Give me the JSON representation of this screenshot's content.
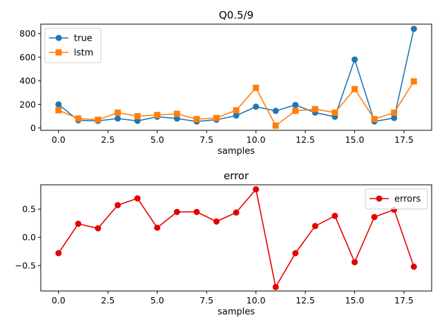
{
  "chart_data": [
    {
      "type": "line",
      "title": "Q0.5/9",
      "xlabel": "samples",
      "ylabel": "",
      "xlim": [
        -0.9,
        18.9
      ],
      "ylim": [
        -20,
        880
      ],
      "xticks": [
        0,
        2.5,
        5,
        7.5,
        10,
        12.5,
        15,
        17.5
      ],
      "xtick_labels": [
        "0.0",
        "2.5",
        "5.0",
        "7.5",
        "10.0",
        "12.5",
        "15.0",
        "17.5"
      ],
      "yticks": [
        0,
        200,
        400,
        600,
        800
      ],
      "ytick_labels": [
        "0",
        "200",
        "400",
        "600",
        "800"
      ],
      "grid": false,
      "legend": "upper-left",
      "x": [
        0,
        1,
        2,
        3,
        4,
        5,
        6,
        7,
        8,
        9,
        10,
        11,
        12,
        13,
        14,
        15,
        16,
        17,
        18
      ],
      "series": [
        {
          "name": "true",
          "color": "#1f77b4",
          "marker": "circle",
          "values": [
            200,
            65,
            60,
            80,
            60,
            95,
            80,
            55,
            70,
            105,
            180,
            145,
            195,
            130,
            95,
            580,
            55,
            85,
            840
          ]
        },
        {
          "name": "lstm",
          "color": "#ff7f0e",
          "marker": "square",
          "values": [
            150,
            80,
            70,
            130,
            100,
            110,
            120,
            75,
            85,
            150,
            340,
            20,
            145,
            160,
            130,
            330,
            75,
            130,
            395
          ]
        }
      ]
    },
    {
      "type": "line",
      "title": "error",
      "xlabel": "samples",
      "ylabel": "",
      "xlim": [
        -0.9,
        18.9
      ],
      "ylim": [
        -0.95,
        0.93
      ],
      "xticks": [
        0,
        2.5,
        5,
        7.5,
        10,
        12.5,
        15,
        17.5
      ],
      "xtick_labels": [
        "0.0",
        "2.5",
        "5.0",
        "7.5",
        "10.0",
        "12.5",
        "15.0",
        "17.5"
      ],
      "yticks": [
        -0.5,
        0,
        0.5
      ],
      "ytick_labels": [
        "−0.5",
        "0.0",
        "0.5"
      ],
      "grid": false,
      "legend": "upper-right",
      "x": [
        0,
        1,
        2,
        3,
        4,
        5,
        6,
        7,
        8,
        9,
        10,
        11,
        12,
        13,
        14,
        15,
        16,
        17,
        18
      ],
      "series": [
        {
          "name": "errors",
          "color": "#e50000",
          "marker": "circle",
          "values": [
            -0.28,
            0.24,
            0.16,
            0.57,
            0.69,
            0.17,
            0.45,
            0.45,
            0.28,
            0.44,
            0.85,
            -0.88,
            -0.28,
            0.2,
            0.38,
            -0.44,
            0.36,
            0.49,
            -0.52
          ]
        }
      ]
    }
  ]
}
